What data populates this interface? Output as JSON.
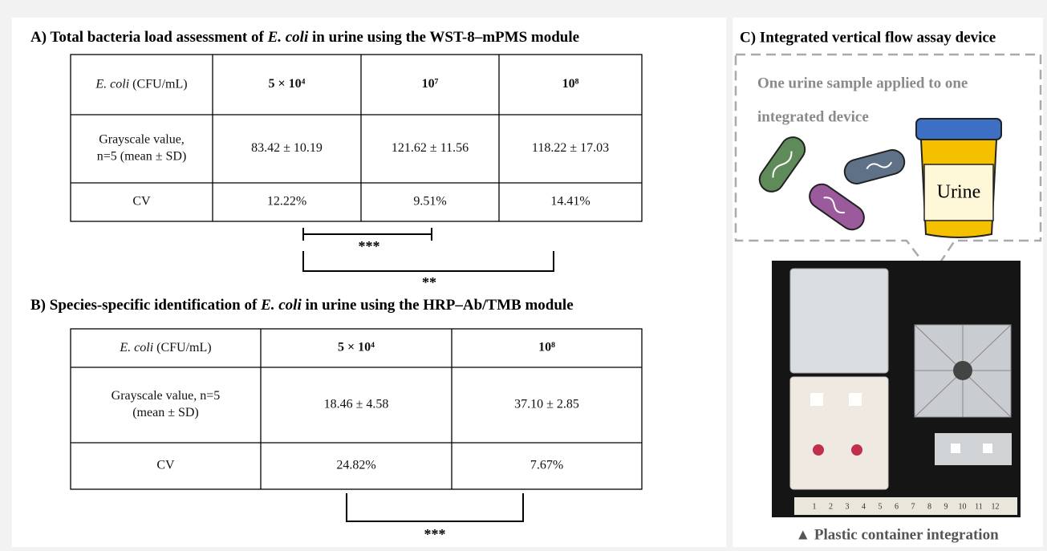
{
  "panel_a": {
    "title": {
      "prefix": "A) Total bacteria load assessment of ",
      "italic": "E. coli",
      "suffix": " in urine using the WST-8–mPMS module"
    },
    "table": {
      "header_label": {
        "italic": "E. coli",
        "text": " (CFU/mL)"
      },
      "header": [
        "5 × 10⁴",
        "10⁷",
        "10⁸"
      ],
      "rows": [
        {
          "label": [
            "Grayscale value,",
            "n=5 (mean ± SD)"
          ],
          "cells": [
            "83.42 ± 10.19",
            "121.62 ± 11.56",
            "118.22 ± 17.03"
          ]
        },
        {
          "label": [
            "CV"
          ],
          "cells": [
            "12.22%",
            "9.51%",
            "14.41%"
          ]
        }
      ]
    },
    "significance": [
      "***",
      "**"
    ]
  },
  "panel_b": {
    "title": {
      "prefix": "B) Species-specific identification of ",
      "italic": "E. coli",
      "suffix": " in urine using the HRP–Ab/TMB module"
    },
    "table": {
      "header_label": {
        "italic": "E. coli",
        "text": " (CFU/mL)"
      },
      "header": [
        "5 × 10⁴",
        "10⁸"
      ],
      "rows": [
        {
          "label": [
            "Grayscale value, n=5",
            "(mean ± SD)"
          ],
          "cells": [
            "18.46 ± 4.58",
            "37.10 ± 2.85"
          ]
        },
        {
          "label": [
            "CV"
          ],
          "cells": [
            "24.82%",
            "7.67%"
          ]
        }
      ]
    },
    "significance": [
      "***"
    ]
  },
  "panel_c": {
    "title": "C) Integrated vertical flow assay device",
    "callout": [
      "One urine sample applied to one",
      "integrated device"
    ],
    "jar_label": "Urine",
    "ruler": [
      "1",
      "2",
      "3",
      "4",
      "5",
      "6",
      "7",
      "8",
      "9",
      "10",
      "11",
      "12"
    ],
    "caption": "▲ Plastic container integration"
  }
}
